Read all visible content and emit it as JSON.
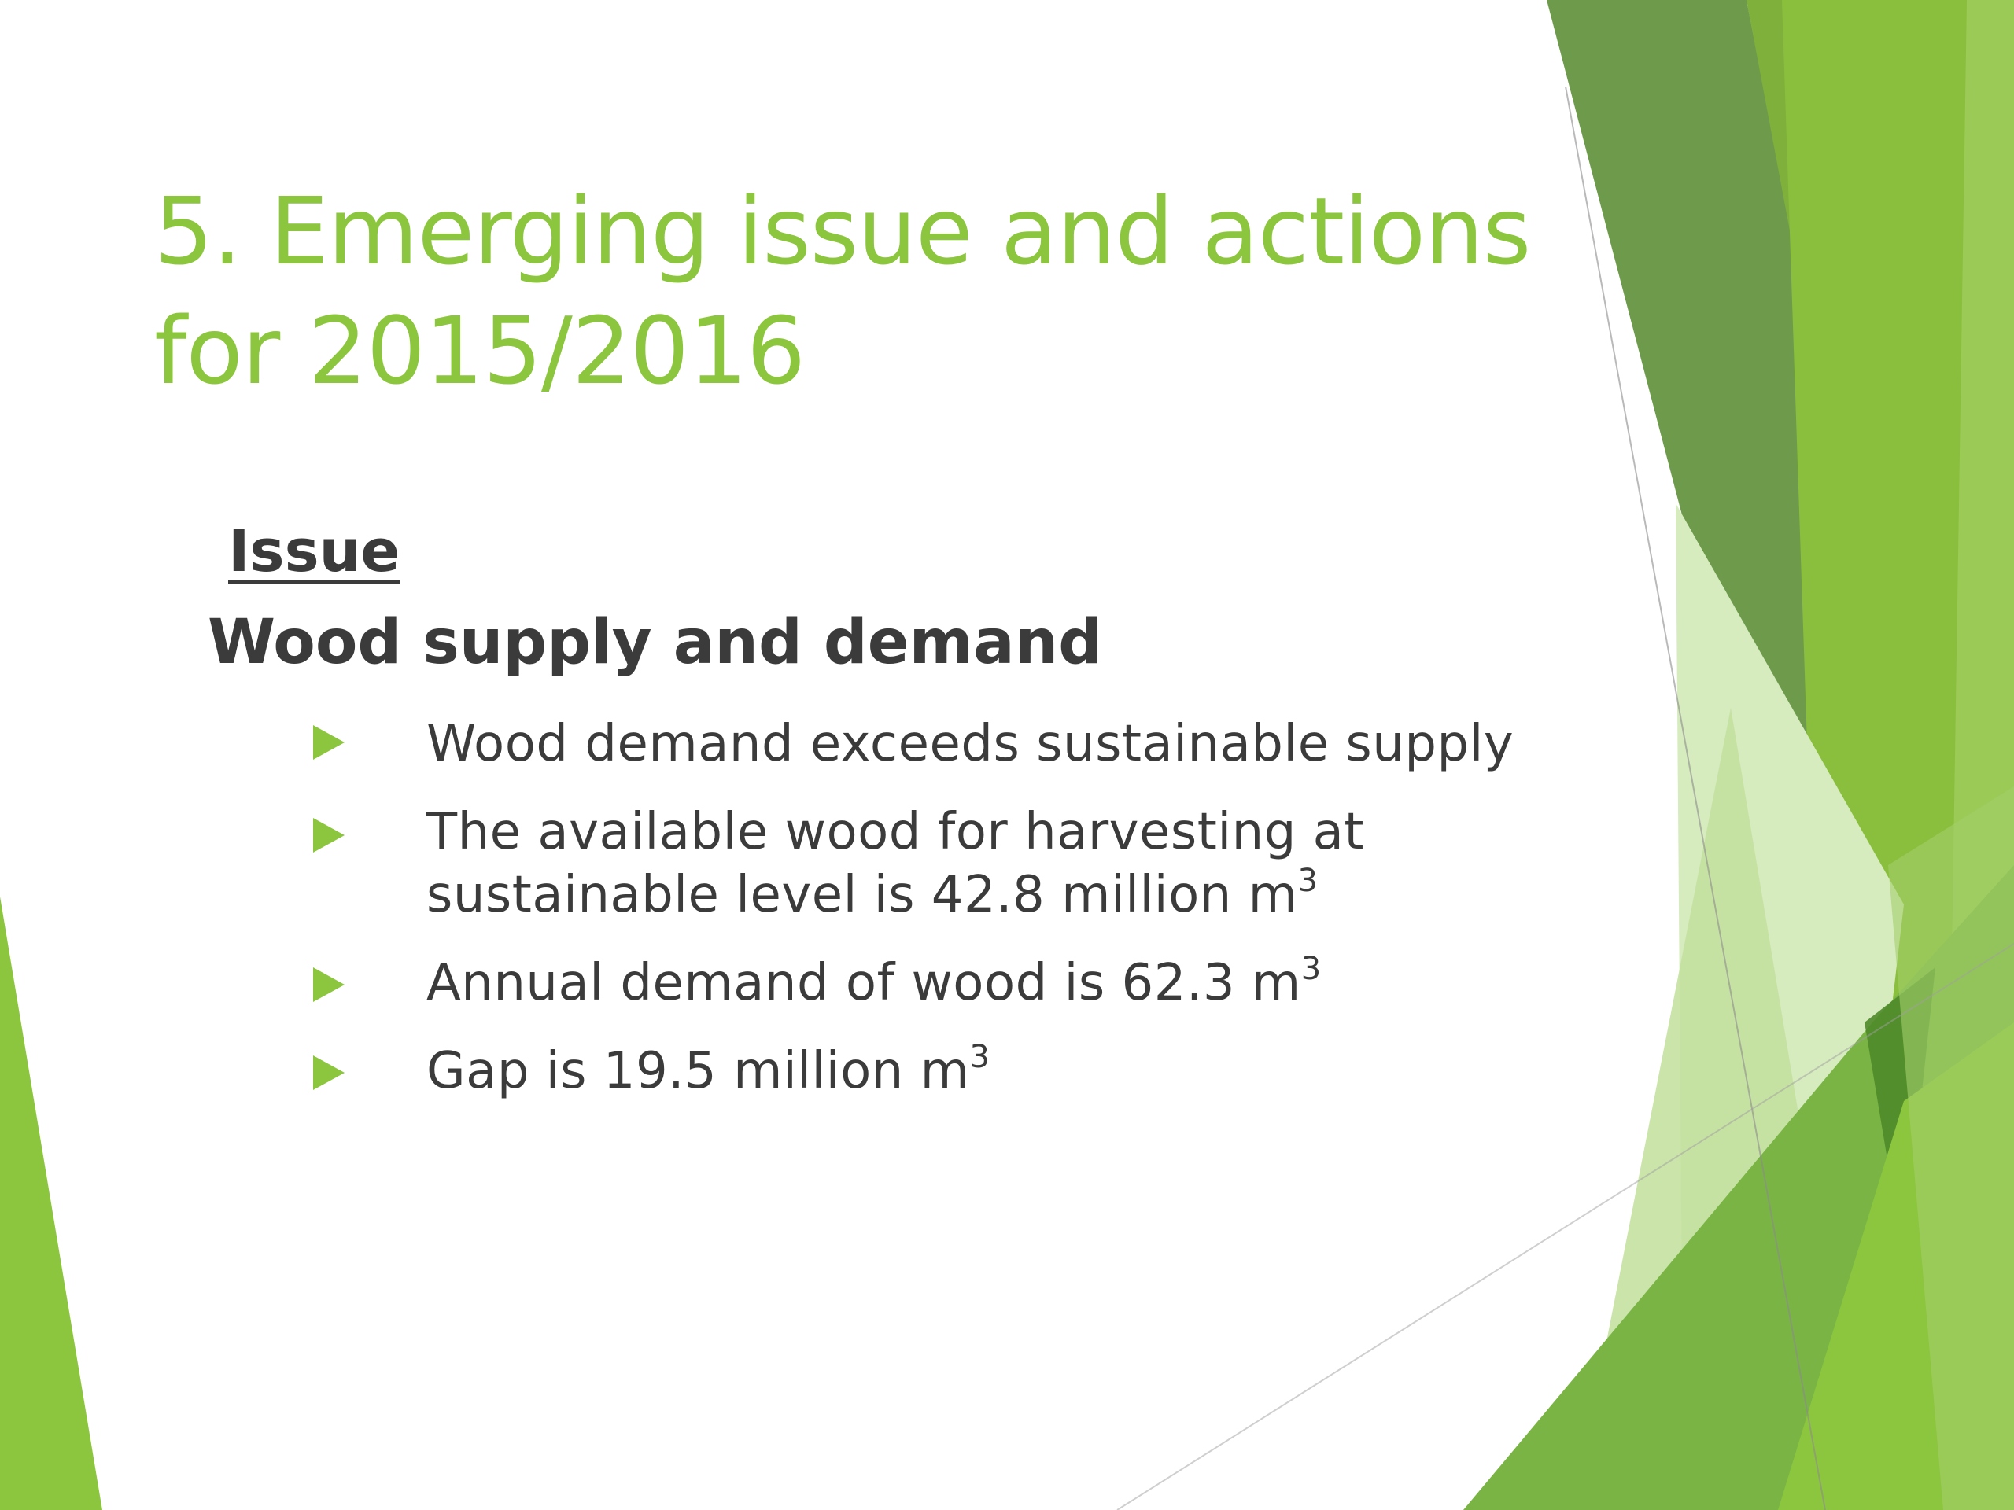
{
  "slide": {
    "title_line1": "5. Emerging issue and actions",
    "title_line2": "for 2015/2016",
    "issue_label": "Issue",
    "subheading": "Wood supply and demand",
    "bullets": [
      {
        "text": "Wood demand exceeds sustainable supply",
        "line2": "",
        "sup": ""
      },
      {
        "text": "The available wood for harvesting at",
        "line2": "sustainable level is 42.8 million m",
        "sup": "3"
      },
      {
        "text": "Annual demand of wood is 62.3 m",
        "line2": "",
        "sup": "3"
      },
      {
        "text": "Gap is 19.5 million m",
        "line2": "",
        "sup": "3"
      }
    ]
  },
  "theme": {
    "accent": "#8cc63e",
    "text": "#3b3b3b",
    "dark_green": "#5c8a3a",
    "light_green": "#d4e8b8"
  }
}
